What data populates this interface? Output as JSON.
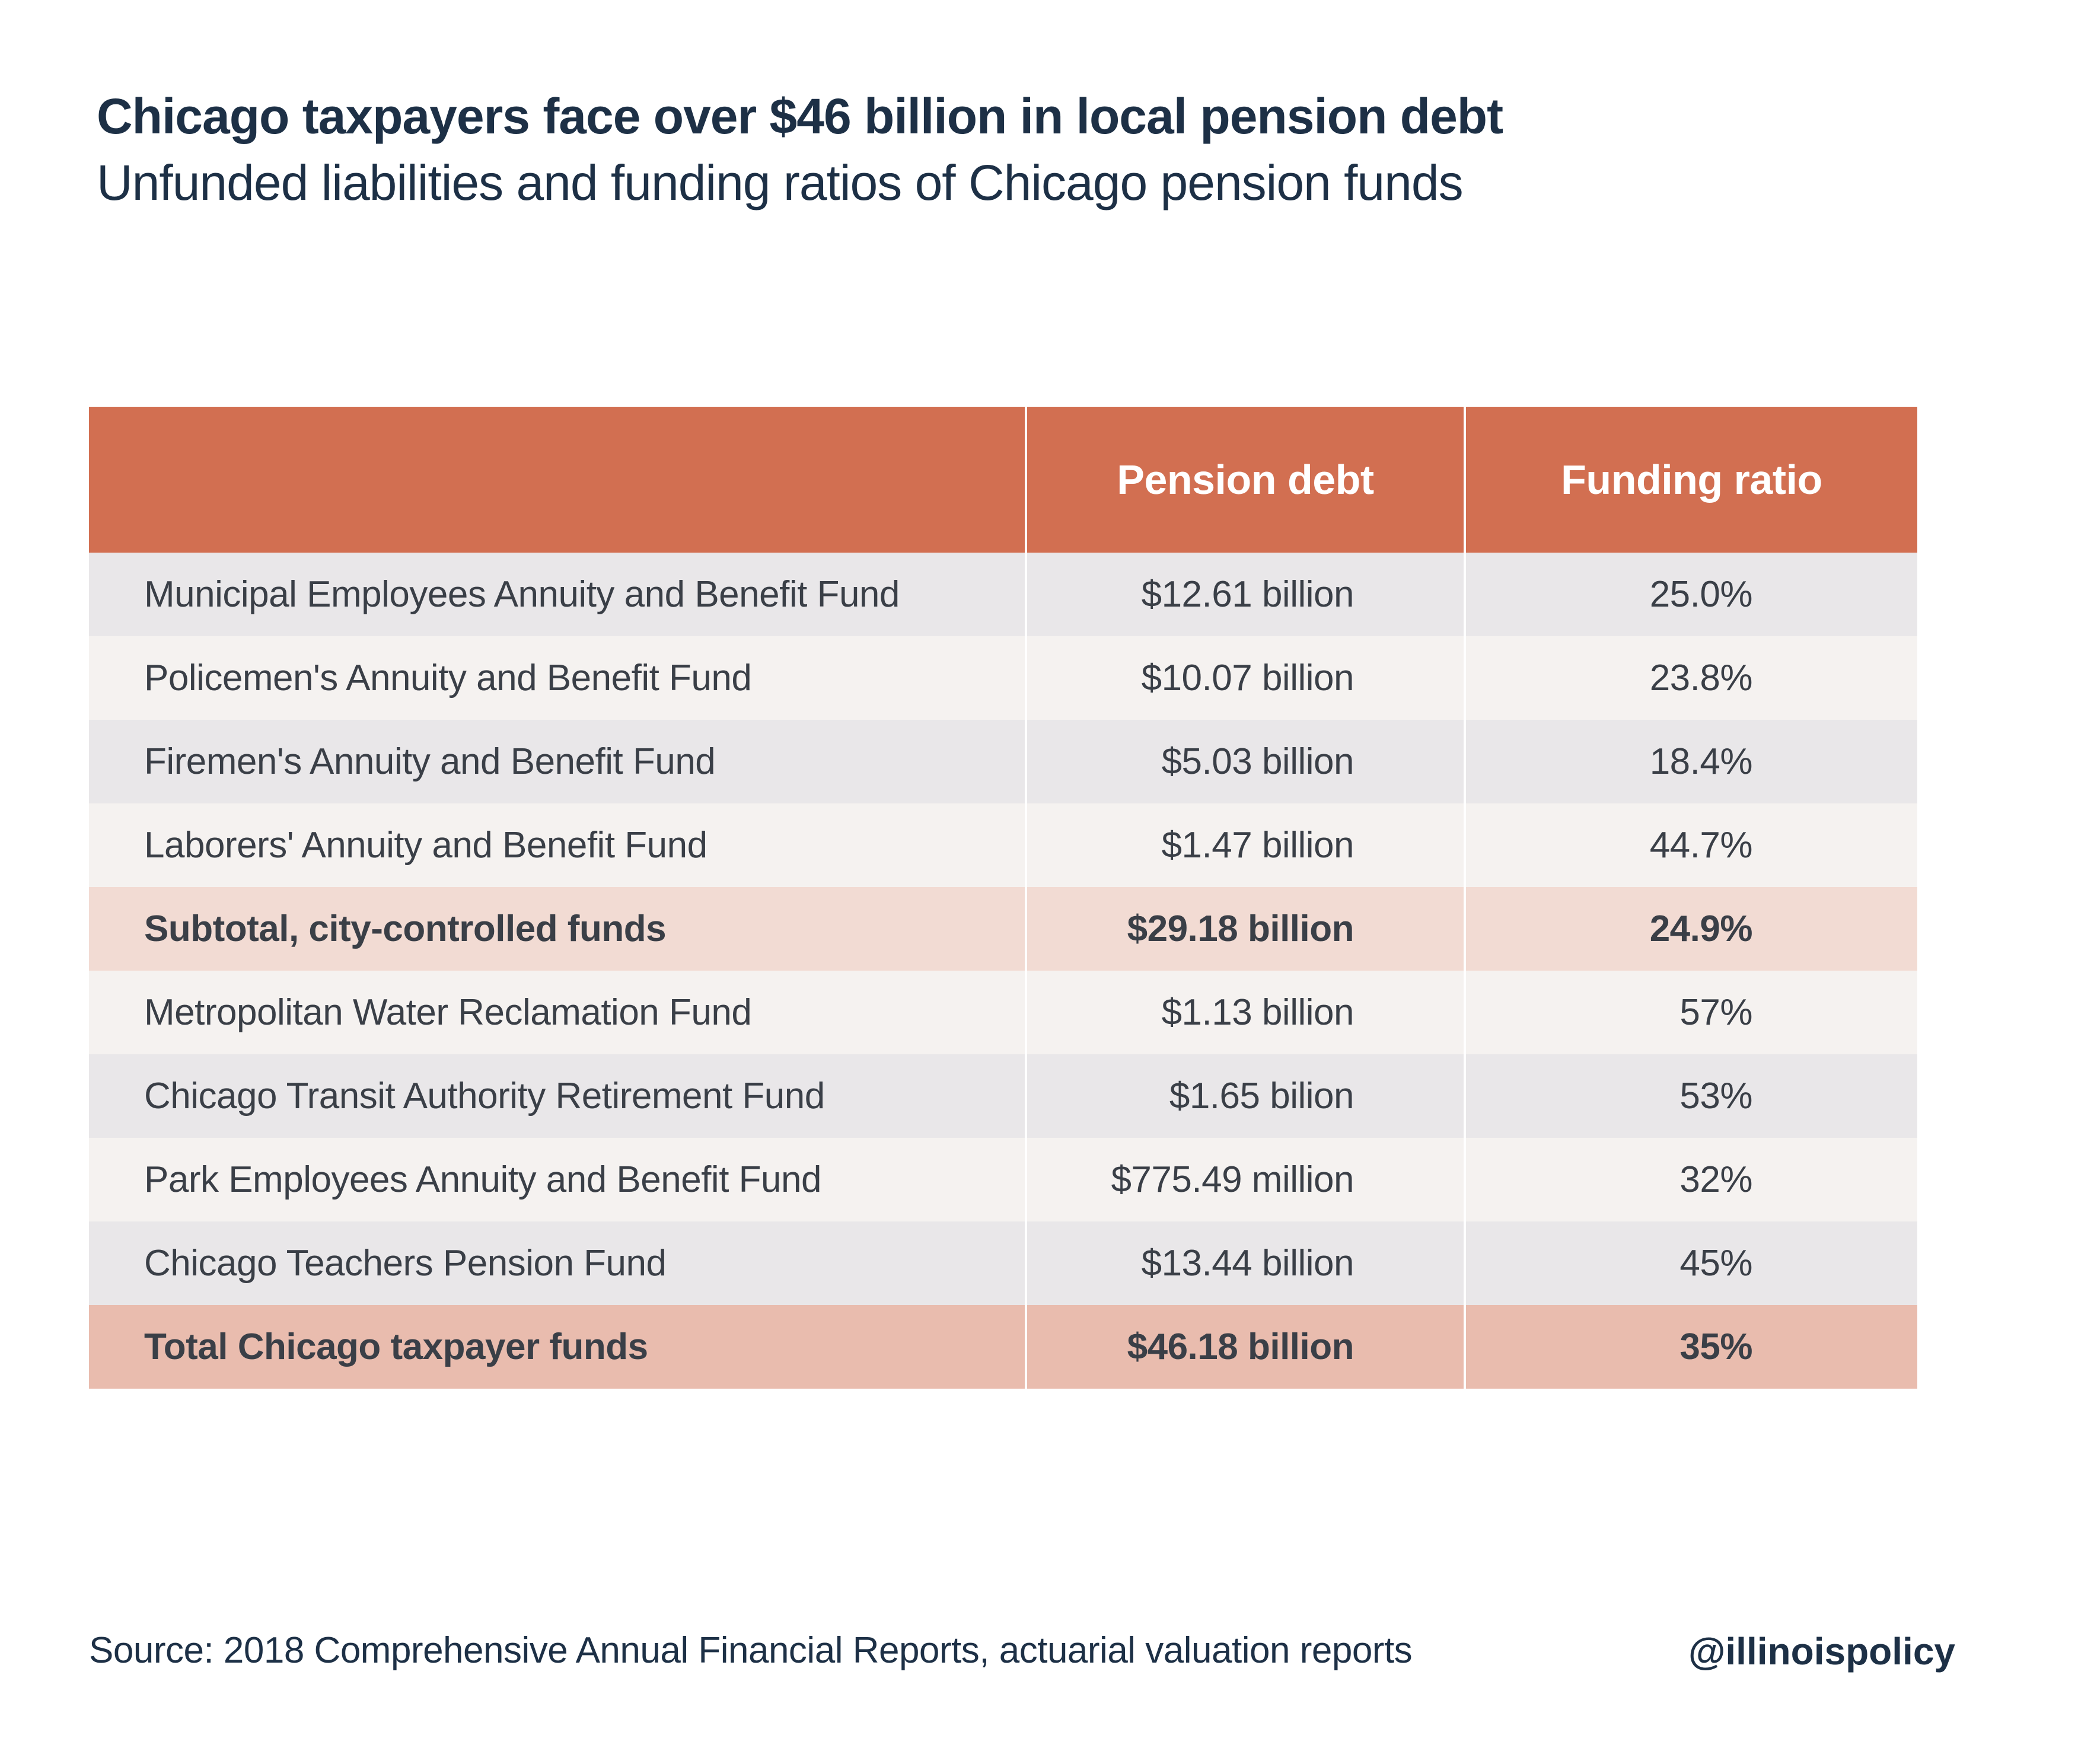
{
  "header": {
    "title": "Chicago taxpayers face over $46 billion in local pension debt",
    "subtitle": "Unfunded liabilities and funding ratios of Chicago pension funds"
  },
  "chart_data": {
    "type": "table",
    "title": "Chicago taxpayers face over $46 billion in local pension debt",
    "subtitle": "Unfunded liabilities and funding ratios of Chicago pension funds",
    "columns": [
      "",
      "Pension debt",
      "Funding ratio"
    ],
    "rows": [
      {
        "name": "Municipal Employees Annuity and Benefit Fund",
        "debt": "$12.61 billion",
        "ratio": "25.0%",
        "kind": "a"
      },
      {
        "name": "Policemen's Annuity and Benefit Fund",
        "debt": "$10.07 billion",
        "ratio": "23.8%",
        "kind": "b"
      },
      {
        "name": "Firemen's Annuity and Benefit Fund",
        "debt": "$5.03 billion",
        "ratio": "18.4%",
        "kind": "a"
      },
      {
        "name": "Laborers' Annuity and Benefit Fund",
        "debt": "$1.47 billion",
        "ratio": "44.7%",
        "kind": "b"
      },
      {
        "name": "Subtotal, city-controlled funds",
        "debt": "$29.18 billion",
        "ratio": "24.9%",
        "kind": "sub"
      },
      {
        "name": "Metropolitan Water Reclamation Fund",
        "debt": "$1.13 billion",
        "ratio": "57%",
        "kind": "b"
      },
      {
        "name": "Chicago Transit Authority Retirement Fund",
        "debt": "$1.65 bilion",
        "ratio": "53%",
        "kind": "a"
      },
      {
        "name": "Park Employees Annuity and Benefit Fund",
        "debt": "$775.49 million",
        "ratio": "32%",
        "kind": "b"
      },
      {
        "name": "Chicago Teachers Pension Fund",
        "debt": "$13.44 billion",
        "ratio": "45%",
        "kind": "a"
      },
      {
        "name": "Total Chicago taxpayer funds",
        "debt": "$46.18 billion",
        "ratio": "35%",
        "kind": "total"
      }
    ]
  },
  "footer": {
    "source": "Source:  2018 Comprehensive Annual Financial Reports, actuarial valuation reports",
    "handle": "@illinoispolicy"
  },
  "colors": {
    "header_bg": "#d26f51",
    "row_a": "#e9e7e9",
    "row_b": "#f5f2f0",
    "subtotal": "#f2dbd3",
    "total": "#e9bcae",
    "title_text": "#1d3046",
    "body_text": "#3a3f47"
  }
}
